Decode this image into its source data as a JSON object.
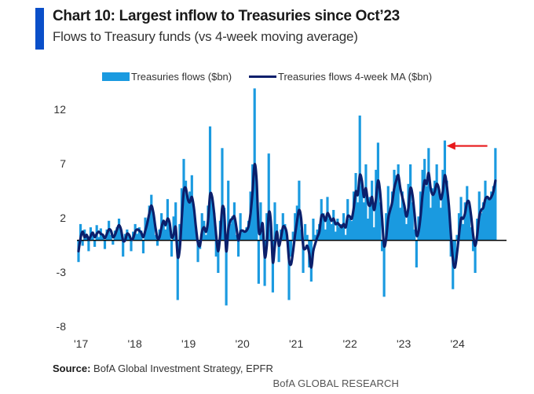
{
  "header": {
    "title": "Chart 10: Largest inflow to Treasuries since Oct’23",
    "subtitle": "Flows to Treasury funds (vs 4-week moving average)"
  },
  "source": {
    "label": "Source:",
    "text": " BofA Global Investment Strategy, EPFR"
  },
  "footer": {
    "brand": "BofA GLOBAL RESEARCH"
  },
  "colors": {
    "accent": "#0a4fc9",
    "bars": "#1a9ae0",
    "ma_line": "#0b1f6b",
    "zero_line": "#000000",
    "arrow": "#e8191b"
  },
  "chart_data": {
    "type": "bar",
    "title": "Chart 10: Largest inflow to Treasuries since Oct’23",
    "subtitle": "Flows to Treasury funds (vs 4-week moving average)",
    "xlabel": "",
    "ylabel": "",
    "ylim": [
      -8,
      14
    ],
    "yticks": [
      12,
      7,
      2,
      -3,
      -8
    ],
    "xticks": [
      "'17",
      "'18",
      "'19",
      "'20",
      "'21",
      "'22",
      "'23",
      "'24"
    ],
    "x_start_year": 2017.0,
    "x_end_year": 2024.75,
    "grid": false,
    "legend_position": "top",
    "annotation": {
      "type": "arrow",
      "pointing_to_year": 2023.8,
      "value": 8.7,
      "from_year": 2024.6,
      "color": "red",
      "meaning": "largest inflow since Oct'23"
    },
    "series": [
      {
        "name": "Treasuries flows ($bn)",
        "kind": "bar",
        "values": [
          -2.0,
          1.5,
          -0.5,
          1.0,
          0.5,
          -1.0,
          1.2,
          0.8,
          -0.6,
          1.4,
          0.3,
          1.1,
          0.6,
          -0.8,
          1.0,
          1.8,
          0.5,
          -0.4,
          0.9,
          1.2,
          2.0,
          0.8,
          -1.5,
          0.6,
          1.0,
          0.4,
          -1.0,
          0.8,
          1.5,
          0.6,
          1.2,
          0.9,
          -1.2,
          2.1,
          1.5,
          3.2,
          4.2,
          2.5,
          0.5,
          -0.5,
          1.0,
          2.5,
          1.8,
          1.0,
          3.8,
          1.2,
          -1.5,
          2.2,
          3.5,
          -5.5,
          1.5,
          4.8,
          7.5,
          5.5,
          3.8,
          4.5,
          6.0,
          3.0,
          0.8,
          -2.0,
          -0.8,
          2.5,
          1.8,
          0.5,
          3.2,
          10.5,
          4.0,
          2.5,
          -1.5,
          -3.0,
          1.8,
          8.5,
          3.0,
          -6.0,
          5.5,
          1.5,
          2.2,
          3.5,
          0.5,
          -1.5,
          2.5,
          1.0,
          0.8,
          1.2,
          1.8,
          4.5,
          7.0,
          14.0,
          5.0,
          -4.0,
          3.5,
          1.0,
          -4.2,
          2.5,
          8.0,
          1.0,
          -4.8,
          3.5,
          1.5,
          -2.0,
          1.0,
          2.5,
          1.5,
          0.5,
          -5.5,
          -1.5,
          0.8,
          2.5,
          3.2,
          5.5,
          1.0,
          -3.0,
          1.5,
          0.5,
          -2.5,
          -3.8,
          2.0,
          0.5,
          1.0,
          1.5,
          3.8,
          2.5,
          1.0,
          4.0,
          2.0,
          1.5,
          2.8,
          0.8,
          2.0,
          1.2,
          1.5,
          2.5,
          0.5,
          3.8,
          2.0,
          1.8,
          4.5,
          6.2,
          3.5,
          11.5,
          5.0,
          3.5,
          7.0,
          2.0,
          4.0,
          5.5,
          1.2,
          6.5,
          9.0,
          3.5,
          -1.0,
          -5.2,
          2.5,
          5.0,
          2.8,
          4.5,
          6.5,
          6.0,
          7.0,
          3.0,
          4.5,
          2.8,
          1.5,
          5.2,
          7.0,
          3.5,
          1.0,
          -2.5,
          2.2,
          4.5,
          6.5,
          7.5,
          5.0,
          8.5,
          3.0,
          4.8,
          5.5,
          7.0,
          4.5,
          3.0,
          6.5,
          9.2,
          5.5,
          3.0,
          -1.5,
          -4.5,
          -2.0,
          0.5,
          2.5,
          4.0,
          1.5,
          3.5,
          5.0,
          3.2,
          1.2,
          -1.0,
          -3.0,
          2.0,
          4.5,
          2.5,
          3.5,
          5.5,
          4.0,
          3.8,
          4.5,
          5.0,
          8.5
        ]
      },
      {
        "name": "Treasuries flows 4-week MA ($bn)",
        "kind": "line",
        "values": [
          -1.0,
          0.2,
          0.8,
          0.3,
          0.5,
          0.1,
          0.4,
          0.7,
          0.3,
          0.6,
          0.8,
          0.6,
          0.5,
          0.2,
          0.6,
          1.0,
          0.9,
          0.3,
          0.5,
          1.0,
          1.4,
          1.0,
          0.0,
          0.0,
          0.6,
          0.5,
          0.1,
          0.2,
          0.8,
          1.0,
          0.9,
          0.7,
          0.3,
          0.9,
          1.6,
          2.5,
          3.2,
          2.5,
          1.2,
          0.2,
          0.3,
          1.2,
          1.8,
          1.4,
          2.0,
          1.6,
          0.3,
          0.5,
          1.2,
          -1.5,
          -0.8,
          2.0,
          4.5,
          4.8,
          3.8,
          3.5,
          4.0,
          3.0,
          1.2,
          -0.2,
          -0.5,
          0.8,
          1.2,
          0.8,
          1.8,
          4.2,
          4.0,
          2.5,
          0.5,
          -1.0,
          0.5,
          3.0,
          2.5,
          -1.0,
          1.0,
          1.8,
          2.0,
          2.2,
          1.2,
          0.0,
          0.8,
          0.9,
          0.8,
          0.9,
          1.3,
          2.5,
          4.5,
          7.0,
          5.5,
          1.0,
          0.8,
          1.5,
          -1.5,
          -0.5,
          2.5,
          1.8,
          -2.0,
          -0.5,
          0.8,
          -0.5,
          0.2,
          1.2,
          1.2,
          0.5,
          -1.8,
          -2.2,
          -1.0,
          0.5,
          1.8,
          2.8,
          2.0,
          -0.5,
          -0.8,
          -0.5,
          -1.2,
          -2.5,
          -1.0,
          -0.3,
          0.3,
          0.8,
          2.2,
          2.3,
          1.8,
          2.5,
          2.2,
          1.8,
          2.0,
          1.5,
          1.6,
          1.4,
          1.2,
          1.5,
          1.2,
          2.2,
          2.2,
          2.0,
          3.0,
          4.5,
          4.2,
          6.0,
          5.5,
          4.0,
          4.8,
          3.5,
          3.2,
          4.0,
          2.8,
          3.8,
          5.5,
          4.5,
          2.0,
          -0.5,
          0.2,
          2.0,
          2.8,
          3.5,
          4.8,
          5.5,
          6.0,
          4.8,
          4.0,
          3.2,
          2.2,
          3.0,
          4.8,
          4.2,
          2.5,
          0.5,
          0.8,
          2.2,
          4.2,
          5.5,
          5.2,
          6.2,
          4.8,
          4.2,
          4.5,
          5.2,
          4.8,
          3.8,
          4.5,
          6.0,
          5.0,
          3.2,
          0.5,
          -1.8,
          -2.5,
          -1.2,
          0.5,
          2.0,
          2.0,
          2.5,
          3.5,
          3.5,
          2.2,
          0.5,
          -0.5,
          0.5,
          2.2,
          2.8,
          3.0,
          3.8,
          4.0,
          3.8,
          4.0,
          4.5,
          5.5
        ]
      }
    ]
  },
  "legend": {
    "items": [
      {
        "label": "Treasuries flows ($bn)",
        "swatch": "bar"
      },
      {
        "label": "Treasuries flows 4-week MA ($bn)",
        "swatch": "line"
      }
    ]
  }
}
